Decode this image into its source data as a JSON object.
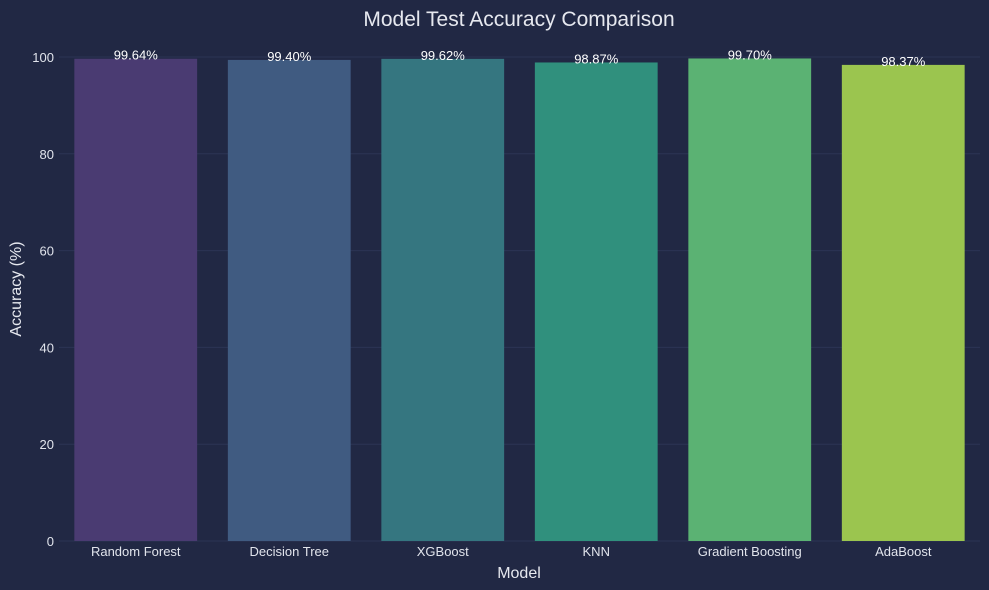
{
  "chart_data": {
    "type": "bar",
    "title": "Model Test Accuracy Comparison",
    "xlabel": "Model",
    "ylabel": "Accuracy (%)",
    "categories": [
      "Random Forest",
      "Decision Tree",
      "XGBoost",
      "KNN",
      "Gradient Boosting",
      "AdaBoost"
    ],
    "values": [
      99.64,
      99.4,
      99.62,
      98.87,
      99.7,
      98.37
    ],
    "value_labels": [
      "99.64%",
      "99.40%",
      "99.62%",
      "98.87%",
      "99.70%",
      "98.37%"
    ],
    "bar_colors": [
      "#4a3b72",
      "#405b81",
      "#357680",
      "#30907d",
      "#5bb273",
      "#9bc54f"
    ],
    "ylim": [
      0,
      100
    ],
    "yticks": [
      0,
      20,
      40,
      60,
      80,
      100
    ],
    "grid": true,
    "legend": "none"
  },
  "colors": {
    "background": "#212844",
    "grid": "#2c3454",
    "text": "#e6e8ef"
  }
}
